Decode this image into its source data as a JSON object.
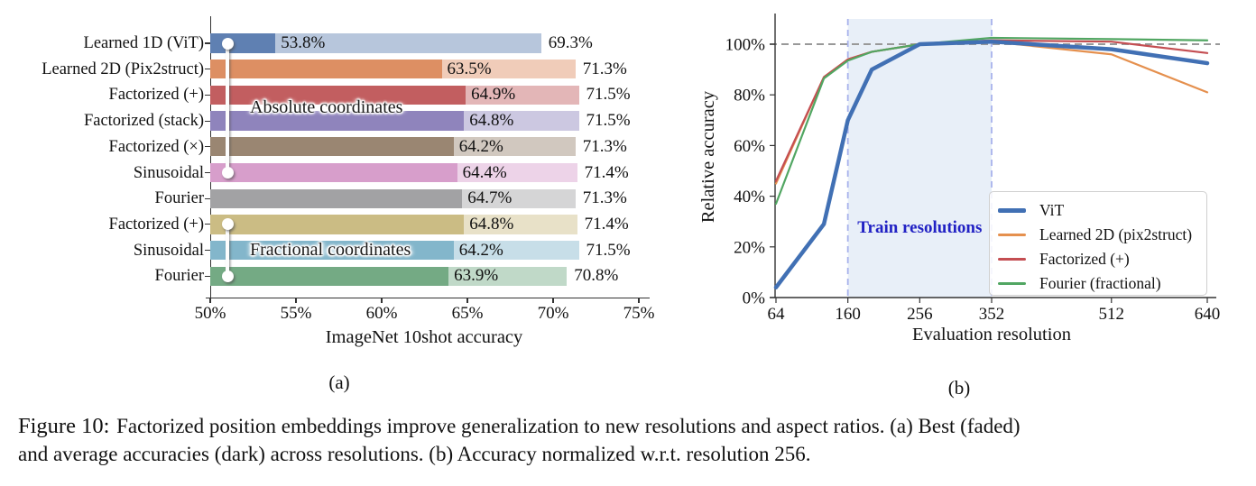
{
  "figure": {
    "subfig_a": "(a)",
    "subfig_b": "(b)",
    "caption_label": "Figure 10:",
    "caption_lines": [
      "Factorized position embeddings improve generalization to new resolutions and aspect ratios. (a) Best (faded)",
      "and average accuracies (dark) across resolutions. (b) Accuracy normalized w.r.t. resolution 256."
    ]
  },
  "chart_data": [
    {
      "type": "bar",
      "orientation": "horizontal",
      "xlabel": "ImageNet 10shot accuracy",
      "xlim": [
        50,
        75
      ],
      "xtick_values": [
        50,
        55,
        60,
        65,
        70,
        75
      ],
      "xtick_labels": [
        "50%",
        "55%",
        "60%",
        "65%",
        "70%",
        "75%"
      ],
      "categories": [
        "Learned 1D (ViT)",
        "Learned 2D (Pix2struct)",
        "Factorized (+)",
        "Factorized (stack)",
        "Factorized (×)",
        "Sinusoidal",
        "Fourier",
        "Factorized (+)",
        "Sinusoidal",
        "Fourier"
      ],
      "series": [
        {
          "name": "average (dark)",
          "values": [
            53.8,
            63.5,
            64.9,
            64.8,
            64.2,
            64.4,
            64.7,
            64.8,
            64.2,
            63.9
          ]
        },
        {
          "name": "best (faded)",
          "values": [
            69.3,
            71.3,
            71.5,
            71.5,
            71.3,
            71.4,
            71.3,
            71.4,
            71.5,
            70.8
          ]
        }
      ],
      "bar_colors": [
        "#5f80b2",
        "#dd8f63",
        "#c25e60",
        "#8f84bc",
        "#9a8672",
        "#d79ecb",
        "#a2a2a4",
        "#cbbc84",
        "#83b6cb",
        "#74aa84"
      ],
      "group_annotations": [
        {
          "label": "Absolute coordinates",
          "from_row": 0,
          "to_row": 5
        },
        {
          "label": "Fractional coordinates",
          "from_row": 7,
          "to_row": 9
        }
      ]
    },
    {
      "type": "line",
      "xlabel": "Evaluation resolution",
      "ylabel": "Relative accuracy",
      "xtick_values": [
        64,
        160,
        256,
        352,
        512,
        640
      ],
      "ytick_values": [
        0,
        20,
        40,
        60,
        80,
        100
      ],
      "ytick_labels": [
        "0%",
        "20%",
        "40%",
        "60%",
        "80%",
        "100%"
      ],
      "ylim": [
        0,
        112
      ],
      "x": [
        64,
        128,
        160,
        192,
        256,
        352,
        512,
        640
      ],
      "series": [
        {
          "name": "ViT",
          "color": "#4170b4",
          "line_width": 4.5,
          "values": [
            4,
            29,
            70,
            90,
            100,
            101,
            98,
            92.5
          ]
        },
        {
          "name": "Learned 2D (pix2struct)",
          "color": "#e5904e",
          "line_width": 2.2,
          "values": [
            45,
            87,
            94,
            97,
            100,
            101,
            96,
            81
          ]
        },
        {
          "name": "Factorized (+)",
          "color": "#c44e52",
          "line_width": 2.2,
          "values": [
            46,
            87,
            94,
            97,
            100,
            101.5,
            101,
            96.5
          ]
        },
        {
          "name": "Fourier (fractional)",
          "color": "#51a662",
          "line_width": 2.2,
          "values": [
            37,
            86.5,
            93.5,
            97,
            100,
            102.5,
            102,
            101.5
          ]
        }
      ],
      "train_region": {
        "from": 160,
        "to": 352,
        "label": "Train resolutions",
        "fill": "#e8eff8",
        "border_color": "#a8b2ec",
        "label_color": "#2121c4"
      },
      "reference_line": {
        "value": 100,
        "color": "#999999"
      },
      "legend_position": "lower right"
    }
  ]
}
